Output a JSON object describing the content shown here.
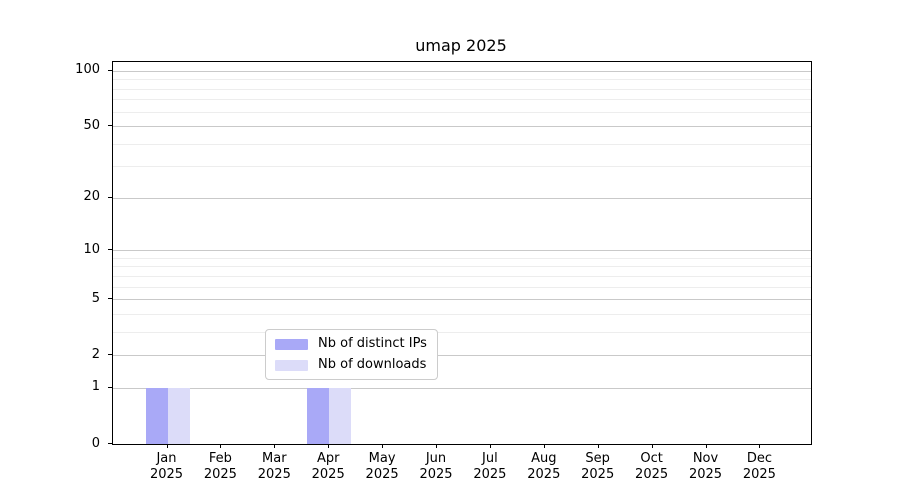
{
  "chart_data": {
    "type": "bar",
    "title": "umap 2025",
    "categories": [
      "Jan 2025",
      "Feb 2025",
      "Mar 2025",
      "Apr 2025",
      "May 2025",
      "Jun 2025",
      "Jul 2025",
      "Aug 2025",
      "Sep 2025",
      "Oct 2025",
      "Nov 2025",
      "Dec 2025"
    ],
    "series": [
      {
        "name": "Nb of distinct IPs",
        "color": "#a9a9f7",
        "values": [
          1,
          0,
          0,
          1,
          0,
          0,
          0,
          0,
          0,
          0,
          0,
          0
        ]
      },
      {
        "name": "Nb of downloads",
        "color": "#dcdcf9",
        "values": [
          1,
          0,
          0,
          1,
          0,
          0,
          0,
          0,
          0,
          0,
          0,
          0
        ]
      }
    ],
    "yscale": "log1p",
    "ylim": [
      0,
      112
    ],
    "y_major_ticks": [
      0,
      1,
      2,
      5,
      10,
      20,
      50,
      100
    ],
    "y_minor_ticks": [
      3,
      4,
      6,
      7,
      8,
      9,
      30,
      40,
      60,
      70,
      80,
      90
    ],
    "grid": true,
    "legend_position": "inside-bottom-center",
    "colors": {
      "background": "#ffffff",
      "spine": "#000000",
      "grid_major": "#c9c9c9",
      "grid_minor": "#ededed",
      "text": "#000000",
      "legend_border": "#cccccc"
    }
  }
}
